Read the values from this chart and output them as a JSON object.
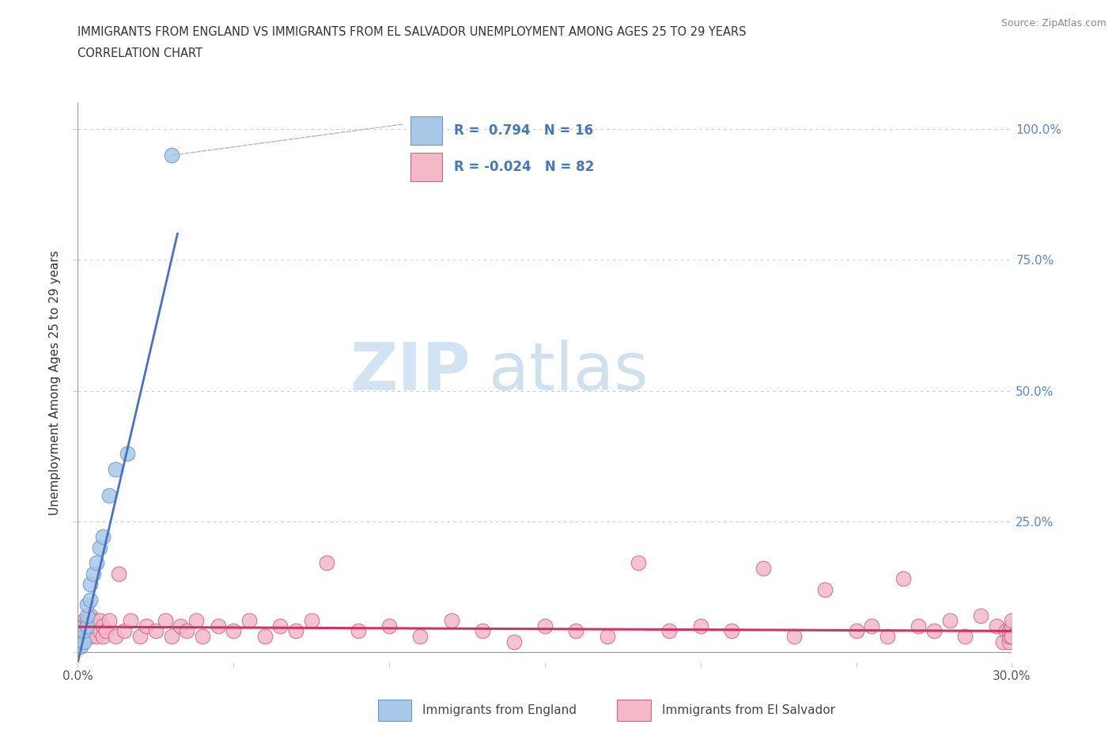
{
  "title_line1": "IMMIGRANTS FROM ENGLAND VS IMMIGRANTS FROM EL SALVADOR UNEMPLOYMENT AMONG AGES 25 TO 29 YEARS",
  "title_line2": "CORRELATION CHART",
  "source_text": "Source: ZipAtlas.com",
  "ylabel": "Unemployment Among Ages 25 to 29 years",
  "xlim": [
    0.0,
    0.3
  ],
  "ylim": [
    -0.02,
    1.05
  ],
  "england_color": "#a8c8e8",
  "england_color_edge": "#6699cc",
  "england_color_line": "#4472c4",
  "salvador_color": "#f4b8c8",
  "salvador_color_edge": "#cc6688",
  "salvador_color_line": "#cc3366",
  "england_R": 0.794,
  "england_N": 16,
  "salvador_R": -0.024,
  "salvador_N": 82,
  "watermark_zip": "ZIP",
  "watermark_atlas": "atlas",
  "england_x": [
    0.001,
    0.002,
    0.002,
    0.003,
    0.003,
    0.003,
    0.004,
    0.004,
    0.005,
    0.006,
    0.007,
    0.008,
    0.01,
    0.012,
    0.016,
    0.03
  ],
  "england_y": [
    0.01,
    0.02,
    0.04,
    0.05,
    0.07,
    0.09,
    0.1,
    0.13,
    0.15,
    0.17,
    0.2,
    0.22,
    0.3,
    0.35,
    0.38,
    0.95
  ],
  "salvador_x": [
    0.001,
    0.001,
    0.001,
    0.002,
    0.002,
    0.002,
    0.002,
    0.003,
    0.003,
    0.003,
    0.003,
    0.004,
    0.004,
    0.004,
    0.005,
    0.005,
    0.005,
    0.006,
    0.006,
    0.007,
    0.007,
    0.008,
    0.008,
    0.009,
    0.01,
    0.012,
    0.013,
    0.015,
    0.017,
    0.02,
    0.022,
    0.025,
    0.028,
    0.03,
    0.033,
    0.035,
    0.038,
    0.04,
    0.045,
    0.05,
    0.055,
    0.06,
    0.065,
    0.07,
    0.075,
    0.08,
    0.09,
    0.1,
    0.11,
    0.12,
    0.13,
    0.14,
    0.15,
    0.16,
    0.17,
    0.18,
    0.19,
    0.2,
    0.21,
    0.22,
    0.23,
    0.24,
    0.25,
    0.255,
    0.26,
    0.265,
    0.27,
    0.275,
    0.28,
    0.285,
    0.29,
    0.295,
    0.297,
    0.298,
    0.299,
    0.299,
    0.299,
    0.3,
    0.3,
    0.3,
    0.3,
    0.3
  ],
  "salvador_y": [
    0.03,
    0.05,
    0.02,
    0.04,
    0.06,
    0.03,
    0.05,
    0.04,
    0.06,
    0.03,
    0.05,
    0.04,
    0.07,
    0.03,
    0.05,
    0.04,
    0.06,
    0.03,
    0.05,
    0.04,
    0.06,
    0.03,
    0.05,
    0.04,
    0.06,
    0.03,
    0.15,
    0.04,
    0.06,
    0.03,
    0.05,
    0.04,
    0.06,
    0.03,
    0.05,
    0.04,
    0.06,
    0.03,
    0.05,
    0.04,
    0.06,
    0.03,
    0.05,
    0.04,
    0.06,
    0.17,
    0.04,
    0.05,
    0.03,
    0.06,
    0.04,
    0.02,
    0.05,
    0.04,
    0.03,
    0.17,
    0.04,
    0.05,
    0.04,
    0.16,
    0.03,
    0.12,
    0.04,
    0.05,
    0.03,
    0.14,
    0.05,
    0.04,
    0.06,
    0.03,
    0.07,
    0.05,
    0.02,
    0.04,
    0.02,
    0.03,
    0.04,
    0.03,
    0.04,
    0.05,
    0.06,
    0.03
  ]
}
